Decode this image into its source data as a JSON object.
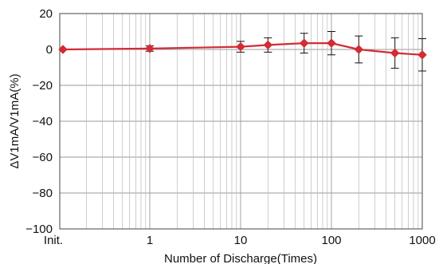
{
  "chart_data": {
    "type": "line",
    "title": "",
    "xlabel": "Number of Discharge(Times)",
    "ylabel": "ΔV1mA/V1mA(%)",
    "x_scale": "log",
    "x_first_tick_label": "Init.",
    "x_tick_labels": [
      "1",
      "10",
      "100",
      "1000"
    ],
    "y_tick_labels": [
      "20",
      "0",
      "−20",
      "−40",
      "−60",
      "−80",
      "−100"
    ],
    "ylim": [
      -100,
      20
    ],
    "grid": true,
    "colors": {
      "series": "#d42b34",
      "error_bar": "#111111"
    },
    "series": [
      {
        "marker": "diamond",
        "points": [
          {
            "x": "Init.",
            "y": 0,
            "err": 0
          },
          {
            "x": 1,
            "y": 0.5,
            "err": 1.5
          },
          {
            "x": 10,
            "y": 1.5,
            "err": 3
          },
          {
            "x": 20,
            "y": 2.5,
            "err": 4
          },
          {
            "x": 50,
            "y": 3.5,
            "err": 5.5
          },
          {
            "x": 100,
            "y": 3.5,
            "err": 6.5
          },
          {
            "x": 200,
            "y": 0,
            "err": 7.5
          },
          {
            "x": 500,
            "y": -2,
            "err": 8.5
          },
          {
            "x": 1000,
            "y": -3,
            "err": 9
          }
        ]
      }
    ]
  }
}
